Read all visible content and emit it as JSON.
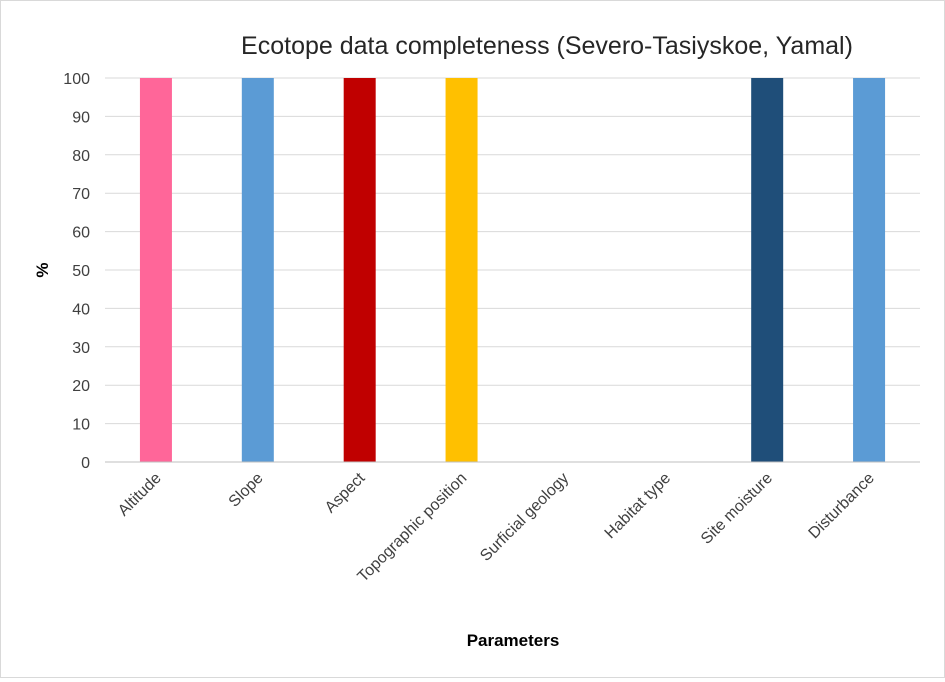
{
  "chart_data": {
    "type": "bar",
    "title": "Ecotope data completeness (Severo-Tasiyskoe, Yamal)",
    "xlabel": "Parameters",
    "ylabel": "%",
    "ylim": [
      0,
      100
    ],
    "yticks": [
      0,
      10,
      20,
      30,
      40,
      50,
      60,
      70,
      80,
      90,
      100
    ],
    "grid": true,
    "legend": "none",
    "categories": [
      "Altitude",
      "Slope",
      "Aspect",
      "Topographic position",
      "Surficial geology",
      "Habitat type",
      "Site moisture",
      "Disturbance"
    ],
    "values": [
      100,
      100,
      100,
      100,
      0,
      0,
      100,
      100
    ],
    "colors": [
      "#ff6699",
      "#5b9bd5",
      "#c00000",
      "#ffc000",
      "#a5a5a5",
      "#70ad47",
      "#1f4e79",
      "#5b9bd5"
    ]
  }
}
